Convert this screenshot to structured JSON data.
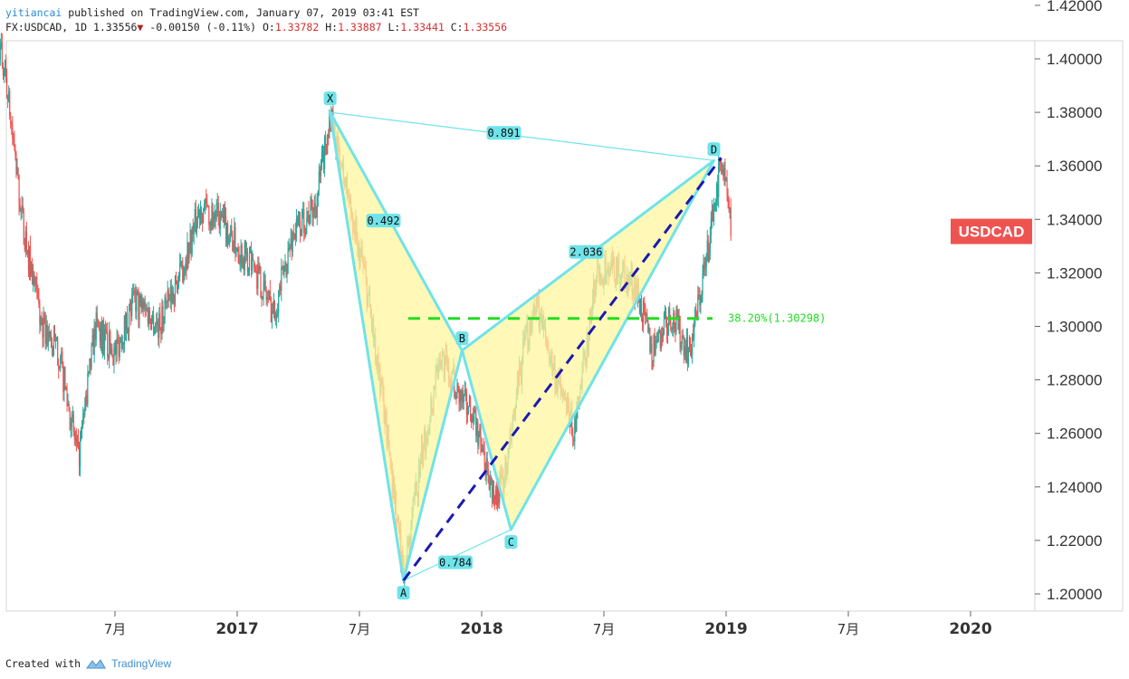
{
  "header": {
    "username": "yitiancai",
    "published_text": "published on TradingView.com, January 07, 2019 03:41 EST",
    "symbol": "FX:USDCAD, 1D",
    "price": "1.33556",
    "change_arrow": "▼",
    "change": "-0.00150",
    "change_pct": "(-0.11%)",
    "open_label": "O:",
    "open": "1.33782",
    "high_label": "H:",
    "high": "1.33887",
    "low_label": "L:",
    "low": "1.33441",
    "close_label": "C:",
    "close": "1.33556"
  },
  "footer": {
    "created_with": "Created with",
    "brand": "TradingView",
    "brand_icon": "tradingview-logo-icon"
  },
  "colors": {
    "up_candle": "#26a69a",
    "down_candle": "#ef5350",
    "pattern_line": "#6fe3ea",
    "pattern_fill": "#fff59d",
    "pattern_label_bg": "#6fe3ea",
    "trend_line": "#1a1ab0",
    "fib_line": "#22dd22",
    "price_tag_bg": "#ef5350"
  },
  "chart_data": {
    "type": "candlestick",
    "symbol": "USDCAD",
    "price_tag": "USDCAD",
    "y_ticks": [
      "1.42000",
      "1.40000",
      "1.38000",
      "1.36000",
      "1.34000",
      "1.32000",
      "1.30000",
      "1.28000",
      "1.26000",
      "1.24000",
      "1.22000",
      "1.20000"
    ],
    "ylim": [
      1.195,
      1.428
    ],
    "x_ticks": [
      "7月",
      "2017",
      "7月",
      "2018",
      "7月",
      "2019",
      "7月",
      "2020"
    ],
    "price_path": [
      {
        "t": 2016.0,
        "v": 1.415
      },
      {
        "t": 2016.05,
        "v": 1.395
      },
      {
        "t": 2016.12,
        "v": 1.34
      },
      {
        "t": 2016.2,
        "v": 1.3
      },
      {
        "t": 2016.27,
        "v": 1.29
      },
      {
        "t": 2016.35,
        "v": 1.25
      },
      {
        "t": 2016.42,
        "v": 1.3
      },
      {
        "t": 2016.5,
        "v": 1.29
      },
      {
        "t": 2016.58,
        "v": 1.31
      },
      {
        "t": 2016.68,
        "v": 1.3
      },
      {
        "t": 2016.77,
        "v": 1.32
      },
      {
        "t": 2016.85,
        "v": 1.345
      },
      {
        "t": 2016.93,
        "v": 1.34
      },
      {
        "t": 2017.0,
        "v": 1.33
      },
      {
        "t": 2017.08,
        "v": 1.32
      },
      {
        "t": 2017.15,
        "v": 1.305
      },
      {
        "t": 2017.23,
        "v": 1.335
      },
      {
        "t": 2017.32,
        "v": 1.345
      },
      {
        "t": 2017.38,
        "v": 1.378
      },
      {
        "t": 2017.45,
        "v": 1.35
      },
      {
        "t": 2017.52,
        "v": 1.32
      },
      {
        "t": 2017.6,
        "v": 1.27
      },
      {
        "t": 2017.68,
        "v": 1.208
      },
      {
        "t": 2017.75,
        "v": 1.248
      },
      {
        "t": 2017.83,
        "v": 1.29
      },
      {
        "t": 2017.9,
        "v": 1.275
      },
      {
        "t": 2017.97,
        "v": 1.265
      },
      {
        "t": 2018.05,
        "v": 1.235
      },
      {
        "t": 2018.1,
        "v": 1.245
      },
      {
        "t": 2018.17,
        "v": 1.29
      },
      {
        "t": 2018.22,
        "v": 1.31
      },
      {
        "t": 2018.3,
        "v": 1.282
      },
      {
        "t": 2018.38,
        "v": 1.26
      },
      {
        "t": 2018.47,
        "v": 1.32
      },
      {
        "t": 2018.55,
        "v": 1.322
      },
      {
        "t": 2018.63,
        "v": 1.315
      },
      {
        "t": 2018.7,
        "v": 1.29
      },
      {
        "t": 2018.77,
        "v": 1.305
      },
      {
        "t": 2018.85,
        "v": 1.29
      },
      {
        "t": 2018.92,
        "v": 1.325
      },
      {
        "t": 2018.98,
        "v": 1.363
      },
      {
        "t": 2019.02,
        "v": 1.336
      }
    ],
    "harmonic_pattern": {
      "points": [
        {
          "name": "X",
          "t": 2017.38,
          "v": 1.38
        },
        {
          "name": "A",
          "t": 2017.68,
          "v": 1.205
        },
        {
          "name": "B",
          "t": 2017.92,
          "v": 1.291
        },
        {
          "name": "C",
          "t": 2018.12,
          "v": 1.224
        },
        {
          "name": "D",
          "t": 2018.95,
          "v": 1.362
        }
      ],
      "ratios": [
        {
          "from": "X",
          "to": "B",
          "label": "0.492"
        },
        {
          "from": "A",
          "to": "C",
          "label": "0.784"
        },
        {
          "from": "B",
          "to": "D",
          "label": "2.036"
        },
        {
          "from": "X",
          "to": "D",
          "label": "0.891"
        }
      ]
    },
    "trend_line": [
      {
        "t": 2017.68,
        "v": 1.205
      },
      {
        "t": 2018.98,
        "v": 1.363
      }
    ],
    "fib_level": {
      "label": "38.20%(1.30298)",
      "value": 1.30298,
      "t_start": 2017.7,
      "t_end": 2019.0
    }
  }
}
